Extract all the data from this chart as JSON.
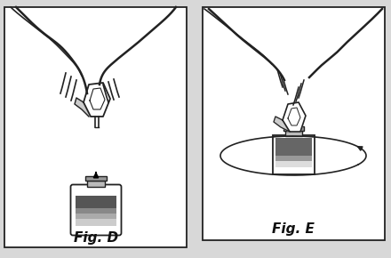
{
  "bg_color": "#d8d8d8",
  "fig_bg": "#ffffff",
  "border_color": "#444444",
  "text_color": "#111111",
  "fig_d_label": "Fig. D",
  "fig_e_label": "Fig. E",
  "label_fontsize": 10,
  "line_color": "#222222",
  "gray_dark": "#444444",
  "gray_mid": "#888888",
  "gray_light": "#cccccc"
}
